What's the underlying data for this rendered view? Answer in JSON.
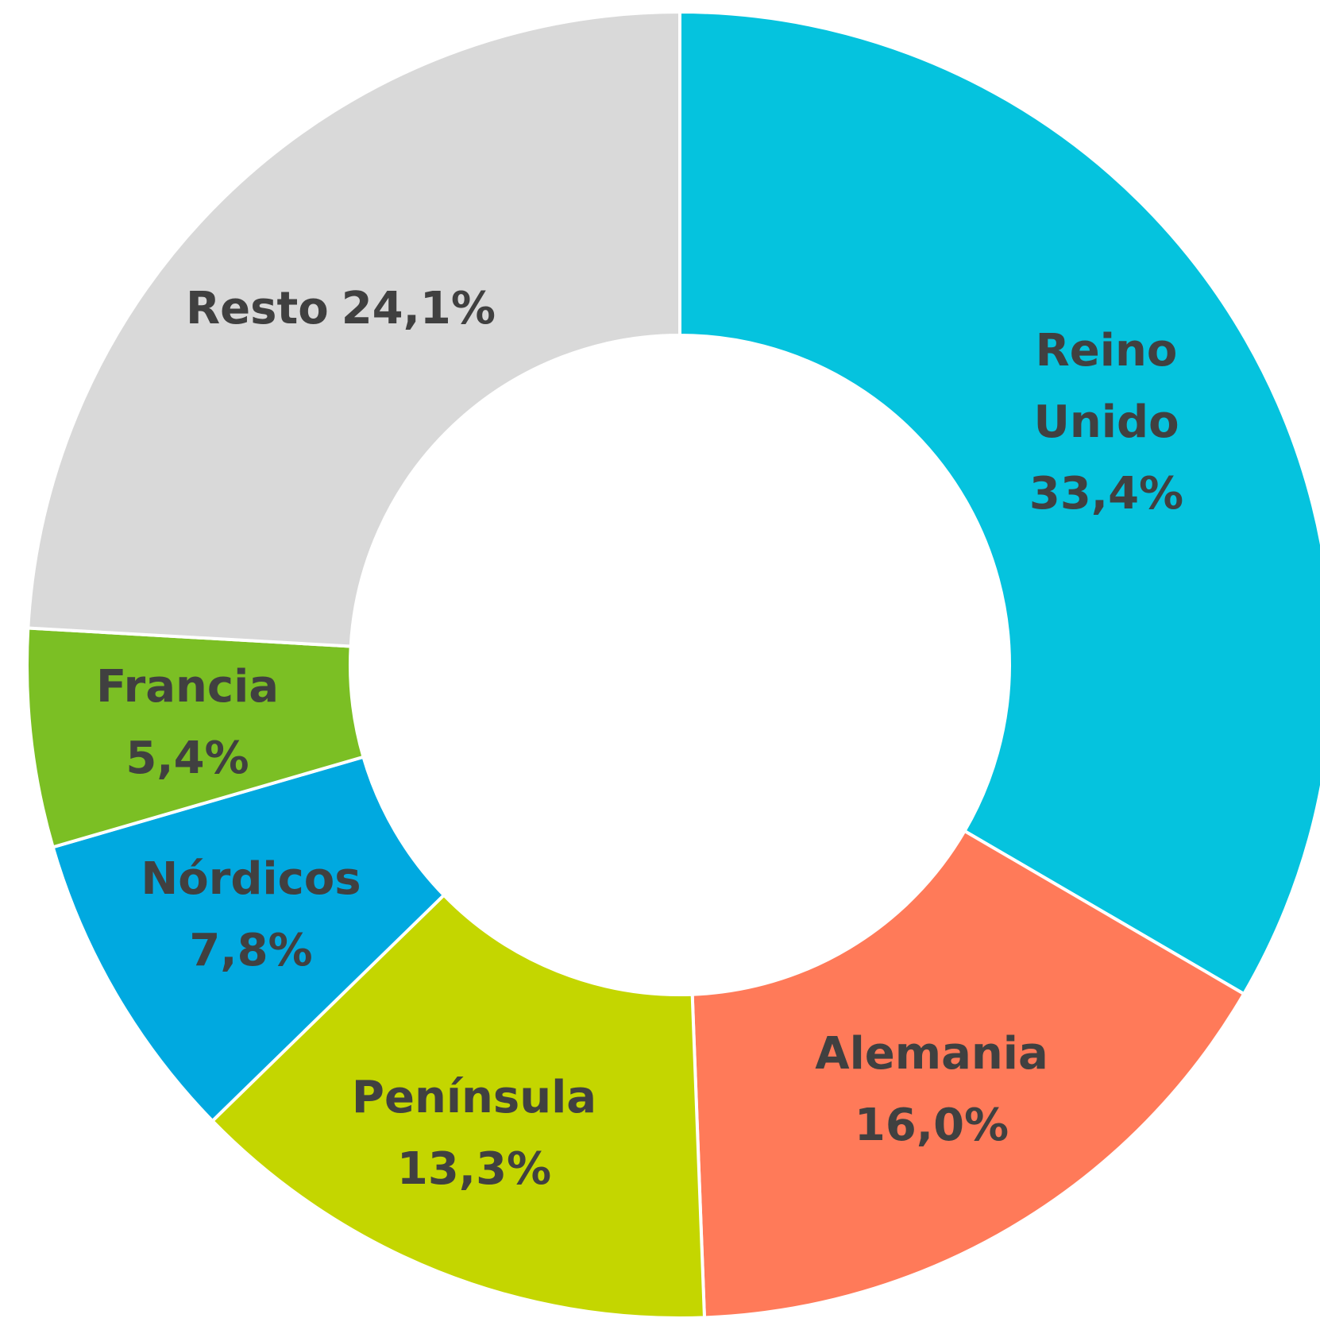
{
  "chart_data": {
    "type": "donut",
    "categories": [
      "Reino Unido",
      "Alemania",
      "Península",
      "Nórdicos",
      "Francia",
      "Resto"
    ],
    "values": [
      33.4,
      16.0,
      13.3,
      7.8,
      5.4,
      24.1
    ],
    "value_labels": [
      "33,4%",
      "16,0%",
      "13,3%",
      "7,8%",
      "5,4%",
      "24,1%"
    ],
    "colors": [
      "#05c3de",
      "#ff7a59",
      "#c4d600",
      "#00a9e0",
      "#7bbf24",
      "#d9d9d9"
    ]
  }
}
